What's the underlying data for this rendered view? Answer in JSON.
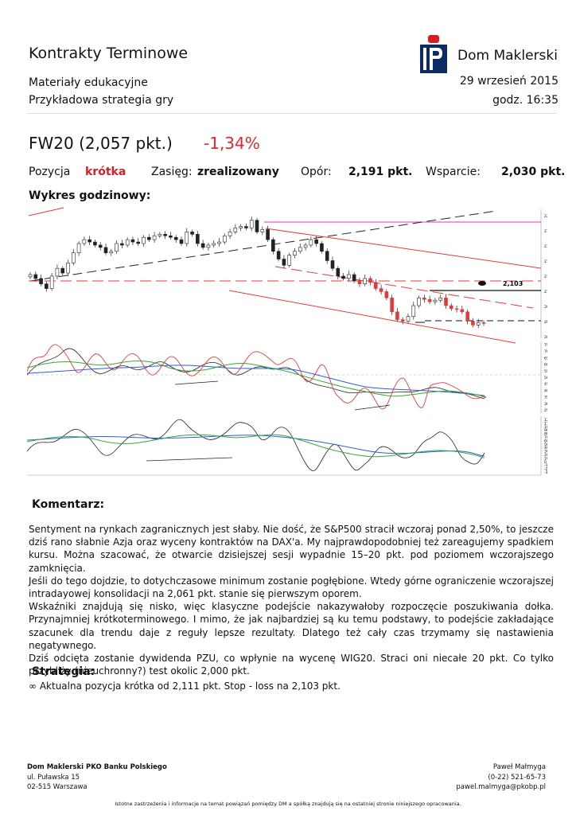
{
  "header": {
    "title": "Kontrakty Terminowe",
    "logo_text": "Dom Maklerski",
    "subtitle_1": "Materiały edukacyjne",
    "subtitle_2": "Przykładowa strategia gry",
    "date": "29 wrzesień 2015",
    "time": "godz. 16:35"
  },
  "instrument": {
    "name": "FW20 (2,057 pkt.)",
    "change": "-1,34%"
  },
  "position_row": {
    "position_label": "Pozycja",
    "position_value": "krótka",
    "range_label": "Zasięg:",
    "range_value": "zrealizowany",
    "resistance_label": "Opór:",
    "resistance_value": "2,191 pkt.",
    "support_label": "Wsparcie:",
    "support_value": "2,030 pkt."
  },
  "chart_section": {
    "title": "Wykres godzinowy:",
    "marker_label": "2,103",
    "price_ticks": [
      "2200",
      "2180",
      "2160",
      "2140",
      "2120",
      "2100",
      "2080",
      "2060",
      "2040"
    ],
    "osc1_ticks": [
      "75",
      "70",
      "65",
      "60",
      "55",
      "50",
      "45",
      "40",
      "35",
      "30",
      "25"
    ],
    "osc2_ticks": [
      "120",
      "110",
      "100",
      "90",
      "80",
      "70",
      "60",
      "50",
      "40",
      "30",
      "20",
      "10",
      "0",
      "-10",
      "-20",
      "-30"
    ]
  },
  "chart_data": {
    "type": "candlestick",
    "title": "",
    "price_axis": [
      2040,
      2200
    ],
    "marked_level": 2103,
    "close_series": [
      2120,
      2115,
      2108,
      2102,
      2118,
      2128,
      2122,
      2135,
      2148,
      2160,
      2165,
      2162,
      2158,
      2155,
      2148,
      2150,
      2160,
      2158,
      2165,
      2162,
      2160,
      2168,
      2165,
      2170,
      2172,
      2170,
      2168,
      2165,
      2160,
      2175,
      2172,
      2160,
      2155,
      2158,
      2160,
      2162,
      2170,
      2175,
      2180,
      2182,
      2180,
      2190,
      2175,
      2178,
      2165,
      2150,
      2140,
      2132,
      2145,
      2150,
      2155,
      2158,
      2165,
      2160,
      2150,
      2138,
      2128,
      2118,
      2115,
      2120,
      2112,
      2108,
      2115,
      2110,
      2102,
      2098,
      2090,
      2072,
      2062,
      2060,
      2066,
      2080,
      2090,
      2088,
      2085,
      2087,
      2090,
      2080,
      2076,
      2075,
      2072,
      2060,
      2055,
      2058,
      2057
    ]
  },
  "commentary": {
    "heading": "Komentarz:",
    "paragraphs": [
      "Sentyment na rynkach zagranicznych jest słaby. Nie dość, że S&P500 stracił wczoraj ponad 2,50%, to jeszcze dziś rano słabnie Azja oraz wyceny kontraktów na DAX'a. My najprawdopodobniej też zareagujemy spadkiem kursu. Można szacować, że otwarcie dzisiejszej sesji wypadnie 15–20 pkt. pod poziomem wczorajszego zamknięcia.",
      "Jeśli do tego dojdzie, to dotychczasowe minimum zostanie pogłębione. Wtedy górne ograniczenie wczorajszej intradayowej konsolidacji na 2,061 pkt. stanie się pierwszym oporem.",
      "Wskaźniki znajdują się nisko, więc klasyczne podejście nakazywałoby rozpoczęcie poszukiwania dołka. Przynajmniej krótkoterminowego. I mimo, że jak najbardziej są ku temu podstawy, to podejście zakładające szacunek dla trendu daje z reguły lepsze rezultaty. Dlatego też cały czas trzymamy się nastawienia negatywnego.",
      "Dziś odcięta zostanie dywidenda PZU, co wpłynie na wycenę WIG20. Straci oni niecałe 20 pkt. Co tylko przybliży (nieuchronny?) test okolic 2,000 pkt."
    ]
  },
  "strategy": {
    "heading": "Strategia:",
    "bullet": "∞",
    "item": "Aktualna pozycja krótka od 2,111 pkt. Stop - loss na 2,103 pkt."
  },
  "footer": {
    "company": "Dom Maklerski PKO Banku Polskiego",
    "address_1": "ul. Puławska 15",
    "address_2": "02-515 Warszawa",
    "person": "Paweł Małmyga",
    "phone": "(0-22) 521-65-73",
    "email": "pawel.malmyga@pkobp.pl",
    "disclaimer": "Istotne zastrzeżenia i informacje na temat powiązań pomiędzy DM a spółką znajdują się na ostatniej stronie niniejszego opracowania."
  },
  "colors": {
    "brand_navy": "#0b2b66",
    "accent_red": "#e2262b"
  }
}
